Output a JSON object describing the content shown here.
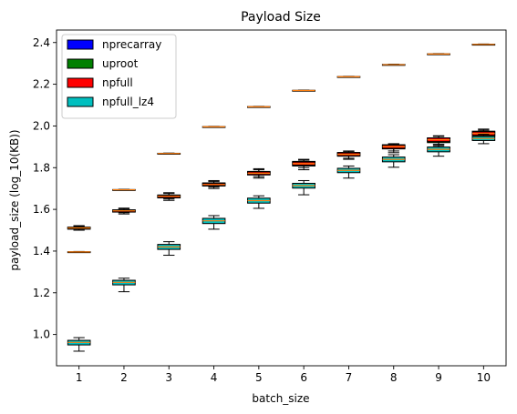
{
  "chart_data": {
    "type": "boxplot",
    "title": "Payload Size",
    "xlabel": "batch_size",
    "ylabel": "payload_size (log_10(KB))",
    "categories": [
      "1",
      "2",
      "3",
      "4",
      "5",
      "6",
      "7",
      "8",
      "9",
      "10"
    ],
    "xlim": [
      0.5,
      10.5
    ],
    "ylim": [
      0.85,
      2.46
    ],
    "yticks": [
      "1.0",
      "1.2",
      "1.4",
      "1.6",
      "1.8",
      "2.0",
      "2.2",
      "2.4"
    ],
    "ytick_values": [
      1.0,
      1.2,
      1.4,
      1.6,
      1.8,
      2.0,
      2.2,
      2.4
    ],
    "grid": false,
    "legend_position": "top-left",
    "series": [
      {
        "name": "nprecarray",
        "color": "#0000ff",
        "boxes": [
          {
            "whislo": 1.394,
            "q1": 1.395,
            "med": 1.396,
            "q3": 1.397,
            "whishi": 1.398
          },
          {
            "whislo": 1.692,
            "q1": 1.693,
            "med": 1.694,
            "q3": 1.695,
            "whishi": 1.696
          },
          {
            "whislo": 1.866,
            "q1": 1.867,
            "med": 1.868,
            "q3": 1.869,
            "whishi": 1.87
          },
          {
            "whislo": 1.994,
            "q1": 1.995,
            "med": 1.996,
            "q3": 1.997,
            "whishi": 1.998
          },
          {
            "whislo": 2.09,
            "q1": 2.091,
            "med": 2.092,
            "q3": 2.093,
            "whishi": 2.094
          },
          {
            "whislo": 2.168,
            "q1": 2.169,
            "med": 2.17,
            "q3": 2.171,
            "whishi": 2.172
          },
          {
            "whislo": 2.234,
            "q1": 2.235,
            "med": 2.236,
            "q3": 2.237,
            "whishi": 2.238
          },
          {
            "whislo": 2.292,
            "q1": 2.293,
            "med": 2.294,
            "q3": 2.295,
            "whishi": 2.296
          },
          {
            "whislo": 2.343,
            "q1": 2.344,
            "med": 2.345,
            "q3": 2.346,
            "whishi": 2.347
          },
          {
            "whislo": 2.389,
            "q1": 2.39,
            "med": 2.391,
            "q3": 2.392,
            "whishi": 2.393
          }
        ]
      },
      {
        "name": "uproot",
        "color": "#008000",
        "boxes": [
          {
            "whislo": 1.5,
            "q1": 1.505,
            "med": 1.51,
            "q3": 1.515,
            "whishi": 1.522
          },
          {
            "whislo": 1.578,
            "q1": 1.587,
            "med": 1.592,
            "q3": 1.598,
            "whishi": 1.606
          },
          {
            "whislo": 1.643,
            "q1": 1.655,
            "med": 1.662,
            "q3": 1.669,
            "whishi": 1.68
          },
          {
            "whislo": 1.7,
            "q1": 1.712,
            "med": 1.718,
            "q3": 1.727,
            "whishi": 1.738
          },
          {
            "whislo": 1.75,
            "q1": 1.765,
            "med": 1.772,
            "q3": 1.782,
            "whishi": 1.795
          },
          {
            "whislo": 1.79,
            "q1": 1.808,
            "med": 1.818,
            "q3": 1.83,
            "whishi": 1.84
          },
          {
            "whislo": 1.84,
            "q1": 1.855,
            "med": 1.865,
            "q3": 1.873,
            "whishi": 1.88
          },
          {
            "whislo": 1.872,
            "q1": 1.89,
            "med": 1.9,
            "q3": 1.91,
            "whishi": 1.915
          },
          {
            "whislo": 1.905,
            "q1": 1.92,
            "med": 1.934,
            "q3": 1.943,
            "whishi": 1.953
          },
          {
            "whislo": 1.935,
            "q1": 1.95,
            "med": 1.965,
            "q3": 1.975,
            "whishi": 1.985
          }
        ]
      },
      {
        "name": "npfull",
        "color": "#ff0000",
        "boxes": [
          {
            "whislo": 1.506,
            "q1": 1.508,
            "med": 1.511,
            "q3": 1.514,
            "whishi": 1.518
          },
          {
            "whislo": 1.584,
            "q1": 1.588,
            "med": 1.593,
            "q3": 1.596,
            "whishi": 1.603
          },
          {
            "whislo": 1.65,
            "q1": 1.657,
            "med": 1.663,
            "q3": 1.668,
            "whishi": 1.676
          },
          {
            "whislo": 1.707,
            "q1": 1.714,
            "med": 1.719,
            "q3": 1.725,
            "whishi": 1.733
          },
          {
            "whislo": 1.757,
            "q1": 1.767,
            "med": 1.773,
            "q3": 1.78,
            "whishi": 1.79
          },
          {
            "whislo": 1.8,
            "q1": 1.812,
            "med": 1.819,
            "q3": 1.827,
            "whishi": 1.836
          },
          {
            "whislo": 1.845,
            "q1": 1.857,
            "med": 1.864,
            "q3": 1.871,
            "whishi": 1.878
          },
          {
            "whislo": 1.88,
            "q1": 1.893,
            "med": 1.901,
            "q3": 1.908,
            "whishi": 1.914
          },
          {
            "whislo": 1.912,
            "q1": 1.925,
            "med": 1.934,
            "q3": 1.942,
            "whishi": 1.95
          },
          {
            "whislo": 1.942,
            "q1": 1.955,
            "med": 1.964,
            "q3": 1.972,
            "whishi": 1.98
          }
        ]
      },
      {
        "name": "npfull_lz4",
        "color": "#00bfbf",
        "boxes": [
          {
            "whislo": 0.92,
            "q1": 0.95,
            "med": 0.962,
            "q3": 0.972,
            "whishi": 0.985
          },
          {
            "whislo": 1.205,
            "q1": 1.238,
            "med": 1.25,
            "q3": 1.26,
            "whishi": 1.27
          },
          {
            "whislo": 1.38,
            "q1": 1.408,
            "med": 1.42,
            "q3": 1.432,
            "whishi": 1.445
          },
          {
            "whislo": 1.505,
            "q1": 1.532,
            "med": 1.545,
            "q3": 1.557,
            "whishi": 1.57
          },
          {
            "whislo": 1.605,
            "q1": 1.63,
            "med": 1.642,
            "q3": 1.654,
            "whishi": 1.665
          },
          {
            "whislo": 1.67,
            "q1": 1.702,
            "med": 1.714,
            "q3": 1.725,
            "whishi": 1.738
          },
          {
            "whislo": 1.75,
            "q1": 1.776,
            "med": 1.787,
            "q3": 1.797,
            "whishi": 1.808
          },
          {
            "whislo": 1.802,
            "q1": 1.828,
            "med": 1.84,
            "q3": 1.851,
            "whishi": 1.862
          },
          {
            "whislo": 1.855,
            "q1": 1.876,
            "med": 1.888,
            "q3": 1.899,
            "whishi": 1.91
          },
          {
            "whislo": 1.915,
            "q1": 1.93,
            "med": 1.94,
            "q3": 1.95,
            "whishi": 1.96
          }
        ]
      }
    ],
    "median_color": "#ff7f0e"
  }
}
